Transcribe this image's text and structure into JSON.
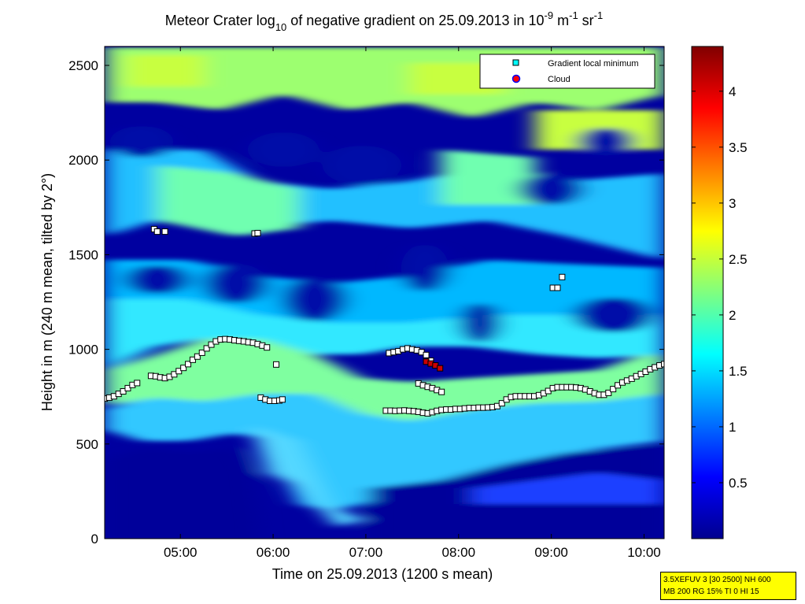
{
  "title": {
    "prefix": "Meteor Crater log",
    "sub": "10",
    "mid": " of negative gradient on 25.09.2013 in 10",
    "sup1": "-9",
    "unit1": " m",
    "sup2": "-1",
    "unit2": " sr",
    "sup3": "-1"
  },
  "colors": {
    "axis": "#000000",
    "marker_minimum": "#ffffff",
    "marker_edge": "#000000",
    "marker_cloud": "#cc0000",
    "legend_marker_minimum": "#00ffff",
    "legend_marker_cloud": "#ff0000",
    "legend_marker_cloud_edge": "#0000ff",
    "infobox_bg": "#ffff00"
  },
  "infobox": {
    "line1": "3.5XEFUV 3 [30 2500] NH 600",
    "line2": "MB 200 RG 15% TI 0 HI 15"
  },
  "chart_data": {
    "type": "heatmap",
    "colormap": "jet",
    "xlabel": "Time on 25.09.2013 (1200 s mean)",
    "ylabel": "Height in m (240 m mean, tilted by 2°)",
    "xlim": [
      "04:11",
      "10:13"
    ],
    "ylim": [
      0,
      2600
    ],
    "x_ticks": [
      "05:00",
      "06:00",
      "07:00",
      "08:00",
      "09:00",
      "10:00"
    ],
    "y_ticks": [
      0,
      500,
      1000,
      1500,
      2000,
      2500
    ],
    "colorbar": {
      "clim": [
        0,
        4.4
      ],
      "ticks": [
        0.5,
        1,
        1.5,
        2,
        2.5,
        3,
        3.5,
        4
      ]
    },
    "legend": {
      "position": "top-right",
      "entries": [
        "Gradient local minimum",
        "Cloud"
      ]
    },
    "series": [
      {
        "name": "Gradient local minimum",
        "marker": "square",
        "points": [
          [
            "04:11",
            740
          ],
          [
            "04:14",
            745
          ],
          [
            "04:17",
            752
          ],
          [
            "04:20",
            765
          ],
          [
            "04:23",
            778
          ],
          [
            "04:26",
            795
          ],
          [
            "04:29",
            812
          ],
          [
            "04:32",
            822
          ],
          [
            "04:41",
            860
          ],
          [
            "04:44",
            858
          ],
          [
            "04:47",
            852
          ],
          [
            "04:50",
            848
          ],
          [
            "04:53",
            855
          ],
          [
            "04:56",
            868
          ],
          [
            "04:59",
            885
          ],
          [
            "05:02",
            902
          ],
          [
            "05:05",
            922
          ],
          [
            "05:08",
            945
          ],
          [
            "05:11",
            962
          ],
          [
            "05:14",
            982
          ],
          [
            "05:17",
            1005
          ],
          [
            "05:20",
            1025
          ],
          [
            "05:23",
            1042
          ],
          [
            "05:26",
            1052
          ],
          [
            "05:29",
            1054
          ],
          [
            "05:32",
            1052
          ],
          [
            "05:35",
            1048
          ],
          [
            "05:38",
            1045
          ],
          [
            "05:41",
            1042
          ],
          [
            "05:44",
            1038
          ],
          [
            "05:47",
            1035
          ],
          [
            "05:50",
            1028
          ],
          [
            "05:53",
            1020
          ],
          [
            "05:56",
            1010
          ],
          [
            "05:52",
            745
          ],
          [
            "05:55",
            735
          ],
          [
            "05:58",
            728
          ],
          [
            "06:01",
            728
          ],
          [
            "06:04",
            730
          ],
          [
            "06:06",
            735
          ],
          [
            "06:02",
            920
          ],
          [
            "04:43",
            1635
          ],
          [
            "04:45",
            1622
          ],
          [
            "04:50",
            1622
          ],
          [
            "05:48",
            1612
          ],
          [
            "05:50",
            1614
          ],
          [
            "07:15",
            980
          ],
          [
            "07:18",
            985
          ],
          [
            "07:21",
            990
          ],
          [
            "07:24",
            1000
          ],
          [
            "07:27",
            1005
          ],
          [
            "07:30",
            1000
          ],
          [
            "07:33",
            995
          ],
          [
            "07:36",
            985
          ],
          [
            "07:39",
            970
          ],
          [
            "07:42",
            940
          ],
          [
            "07:45",
            915
          ],
          [
            "07:34",
            820
          ],
          [
            "07:37",
            810
          ],
          [
            "07:40",
            802
          ],
          [
            "07:43",
            795
          ],
          [
            "07:46",
            785
          ],
          [
            "07:49",
            775
          ],
          [
            "07:13",
            676
          ],
          [
            "07:16",
            676
          ],
          [
            "07:19",
            675
          ],
          [
            "07:22",
            676
          ],
          [
            "07:25",
            677
          ],
          [
            "07:28",
            675
          ],
          [
            "07:31",
            673
          ],
          [
            "07:34",
            670
          ],
          [
            "07:37",
            665
          ],
          [
            "07:40",
            662
          ],
          [
            "07:43",
            668
          ],
          [
            "07:46",
            675
          ],
          [
            "07:49",
            680
          ],
          [
            "07:52",
            682
          ],
          [
            "07:55",
            682
          ],
          [
            "07:58",
            685
          ],
          [
            "08:01",
            685
          ],
          [
            "08:04",
            688
          ],
          [
            "08:07",
            690
          ],
          [
            "08:10",
            690
          ],
          [
            "08:13",
            692
          ],
          [
            "08:16",
            692
          ],
          [
            "08:19",
            693
          ],
          [
            "08:22",
            695
          ],
          [
            "08:25",
            700
          ],
          [
            "08:28",
            715
          ],
          [
            "08:31",
            735
          ],
          [
            "08:34",
            748
          ],
          [
            "08:37",
            752
          ],
          [
            "08:40",
            752
          ],
          [
            "08:43",
            752
          ],
          [
            "08:46",
            752
          ],
          [
            "08:49",
            752
          ],
          [
            "08:52",
            758
          ],
          [
            "08:55",
            768
          ],
          [
            "08:58",
            780
          ],
          [
            "09:01",
            795
          ],
          [
            "09:04",
            800
          ],
          [
            "09:07",
            800
          ],
          [
            "09:10",
            800
          ],
          [
            "09:13",
            800
          ],
          [
            "09:16",
            798
          ],
          [
            "09:19",
            795
          ],
          [
            "09:22",
            788
          ],
          [
            "09:25",
            778
          ],
          [
            "09:28",
            768
          ],
          [
            "09:31",
            760
          ],
          [
            "09:34",
            760
          ],
          [
            "09:37",
            770
          ],
          [
            "09:40",
            790
          ],
          [
            "09:43",
            810
          ],
          [
            "09:46",
            825
          ],
          [
            "09:49",
            835
          ],
          [
            "09:52",
            845
          ],
          [
            "09:55",
            858
          ],
          [
            "09:58",
            870
          ],
          [
            "10:01",
            882
          ],
          [
            "10:04",
            895
          ],
          [
            "10:07",
            905
          ],
          [
            "10:10",
            915
          ],
          [
            "10:13",
            922
          ],
          [
            "09:01",
            1325
          ],
          [
            "09:04",
            1325
          ],
          [
            "09:07",
            1382
          ]
        ]
      },
      {
        "name": "Cloud",
        "marker": "circle",
        "points": [
          [
            "07:39",
            935
          ],
          [
            "07:42",
            925
          ],
          [
            "07:45",
            915
          ],
          [
            "07:48",
            900
          ]
        ]
      }
    ]
  }
}
